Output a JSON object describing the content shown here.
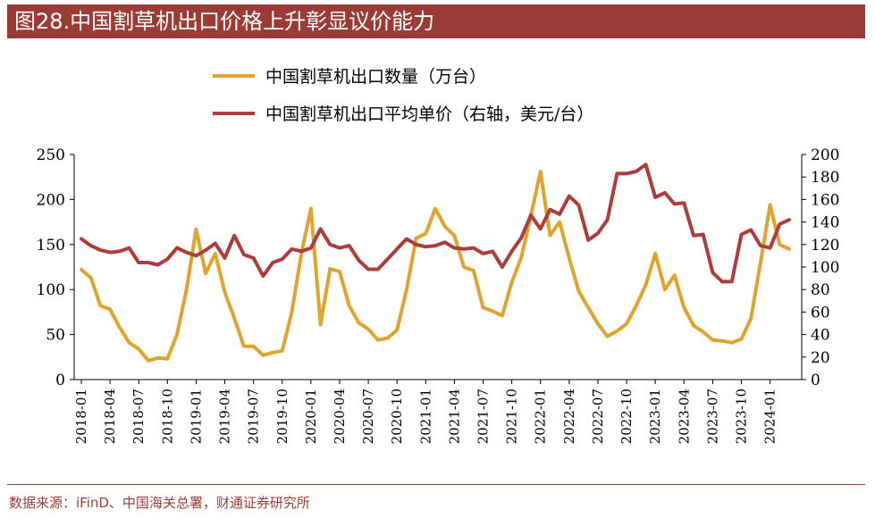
{
  "header": {
    "title": "图28.中国割草机出口价格上升彰显议价能力"
  },
  "footer": {
    "source": "数据来源：iFinD、中国海关总署，财通证券研究所"
  },
  "colors": {
    "quantity": "#e0a32e",
    "price": "#ad3c3a",
    "brand": "#9b3b35"
  },
  "chart_data": {
    "type": "line",
    "title": "中国割草机出口价格上升彰显议价能力",
    "categories": [
      "2018-01",
      "2018-02",
      "2018-03",
      "2018-04",
      "2018-05",
      "2018-06",
      "2018-07",
      "2018-08",
      "2018-09",
      "2018-10",
      "2018-11",
      "2018-12",
      "2019-01",
      "2019-02",
      "2019-03",
      "2019-04",
      "2019-05",
      "2019-06",
      "2019-07",
      "2019-08",
      "2019-09",
      "2019-10",
      "2019-11",
      "2019-12",
      "2020-01",
      "2020-02",
      "2020-03",
      "2020-04",
      "2020-05",
      "2020-06",
      "2020-07",
      "2020-08",
      "2020-09",
      "2020-10",
      "2020-11",
      "2020-12",
      "2021-01",
      "2021-02",
      "2021-03",
      "2021-04",
      "2021-05",
      "2021-06",
      "2021-07",
      "2021-08",
      "2021-09",
      "2021-10",
      "2021-11",
      "2021-12",
      "2022-01",
      "2022-02",
      "2022-03",
      "2022-04",
      "2022-05",
      "2022-06",
      "2022-07",
      "2022-08",
      "2022-09",
      "2022-10",
      "2022-11",
      "2022-12",
      "2023-01",
      "2023-02",
      "2023-03",
      "2023-04",
      "2023-05",
      "2023-06",
      "2023-07",
      "2023-08",
      "2023-09",
      "2023-10",
      "2023-11",
      "2023-12",
      "2024-01",
      "2024-02",
      "2024-03"
    ],
    "tick_labels": [
      "2018-01",
      "2018-04",
      "2018-07",
      "2018-10",
      "2019-01",
      "2019-04",
      "2019-07",
      "2019-10",
      "2020-01",
      "2020-04",
      "2020-07",
      "2020-10",
      "2021-01",
      "2021-04",
      "2021-07",
      "2021-10",
      "2022-01",
      "2022-04",
      "2022-07",
      "2022-10",
      "2023-01",
      "2023-04",
      "2023-07",
      "2023-10",
      "2024-01"
    ],
    "series": [
      {
        "name": "中国割草机出口数量（万台）",
        "axis": "left",
        "values": [
          122,
          113,
          82,
          78,
          58,
          41,
          34,
          21,
          24,
          23,
          50,
          100,
          167,
          118,
          140,
          97,
          68,
          37,
          37,
          27,
          30,
          32,
          75,
          140,
          190,
          61,
          123,
          120,
          82,
          63,
          56,
          44,
          46,
          55,
          100,
          157,
          162,
          190,
          170,
          160,
          125,
          121,
          80,
          76,
          71,
          108,
          136,
          182,
          231,
          160,
          175,
          135,
          98,
          80,
          62,
          48,
          54,
          62,
          82,
          105,
          140,
          100,
          116,
          80,
          60,
          53,
          44,
          43,
          41,
          45,
          68,
          130,
          194,
          150,
          145
        ]
      },
      {
        "name": "中国割草机出口平均单价（右轴，美元/台）",
        "axis": "right",
        "values": [
          125,
          119,
          115,
          113,
          114,
          117,
          104,
          104,
          102,
          107,
          117,
          113,
          110,
          115,
          121,
          108,
          128,
          111,
          108,
          92,
          104,
          107,
          116,
          114,
          117,
          134,
          120,
          117,
          119,
          106,
          98,
          98,
          107,
          116,
          125,
          120,
          118,
          119,
          122,
          117,
          116,
          117,
          112,
          114,
          100,
          114,
          126,
          146,
          134,
          151,
          147,
          163,
          155,
          124,
          130,
          142,
          183,
          183,
          185,
          191,
          162,
          166,
          156,
          157,
          128,
          129,
          95,
          87,
          87,
          129,
          133,
          119,
          117,
          138,
          142
        ]
      }
    ],
    "left_axis": {
      "ylim": [
        0,
        250
      ],
      "ticks": [
        0,
        50,
        100,
        150,
        200,
        250
      ]
    },
    "right_axis": {
      "ylim": [
        0,
        200
      ],
      "ticks": [
        0,
        20,
        40,
        60,
        80,
        100,
        120,
        140,
        160,
        180,
        200
      ]
    },
    "legend_position": "top-center",
    "grid": false
  }
}
